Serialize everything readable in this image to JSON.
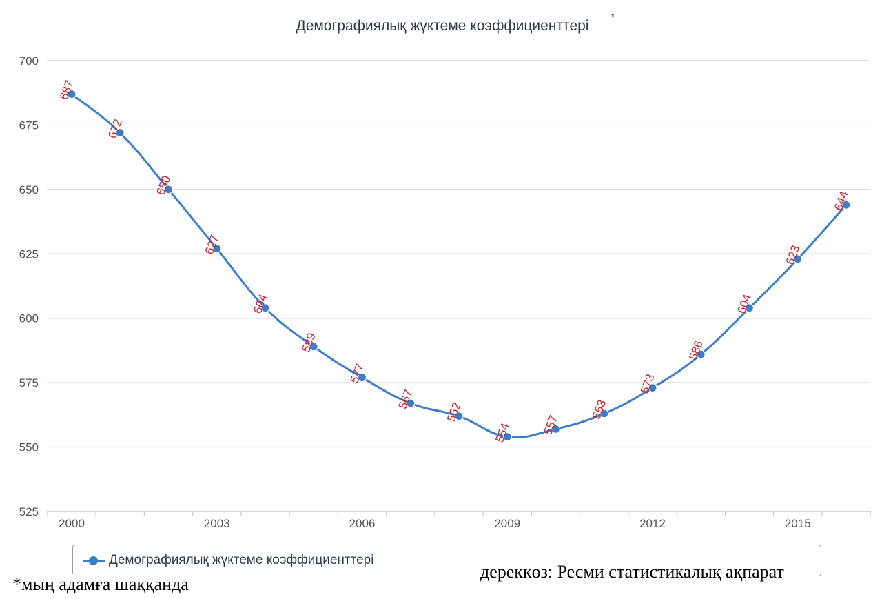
{
  "chart_data": {
    "type": "line",
    "title": "Демографиялық жүктеме коэффициенттері",
    "title_mark": "*",
    "x": [
      2000,
      2001,
      2002,
      2003,
      2004,
      2005,
      2006,
      2007,
      2008,
      2009,
      2010,
      2011,
      2012,
      2013,
      2014,
      2015,
      2016
    ],
    "x_tick_labels": [
      "2000",
      "2003",
      "2006",
      "2009",
      "2012",
      "2015"
    ],
    "y_ticks": [
      525,
      550,
      575,
      600,
      625,
      650,
      675,
      700
    ],
    "ylim": [
      525,
      700
    ],
    "grid": true,
    "legend_position": "bottom",
    "series": [
      {
        "name": "Демографиялық жүктеме коэффициенттері",
        "color": "#3a7dc9",
        "values": [
          687,
          672,
          650,
          627,
          604,
          589,
          577,
          567,
          562,
          554,
          557,
          563,
          573,
          586,
          604,
          623,
          644
        ]
      }
    ],
    "data_label_color": "#c8232c"
  },
  "footnote": "*мың адамға шаққанда",
  "source": "дереккөз: Ресми статистикалық ақпарат"
}
